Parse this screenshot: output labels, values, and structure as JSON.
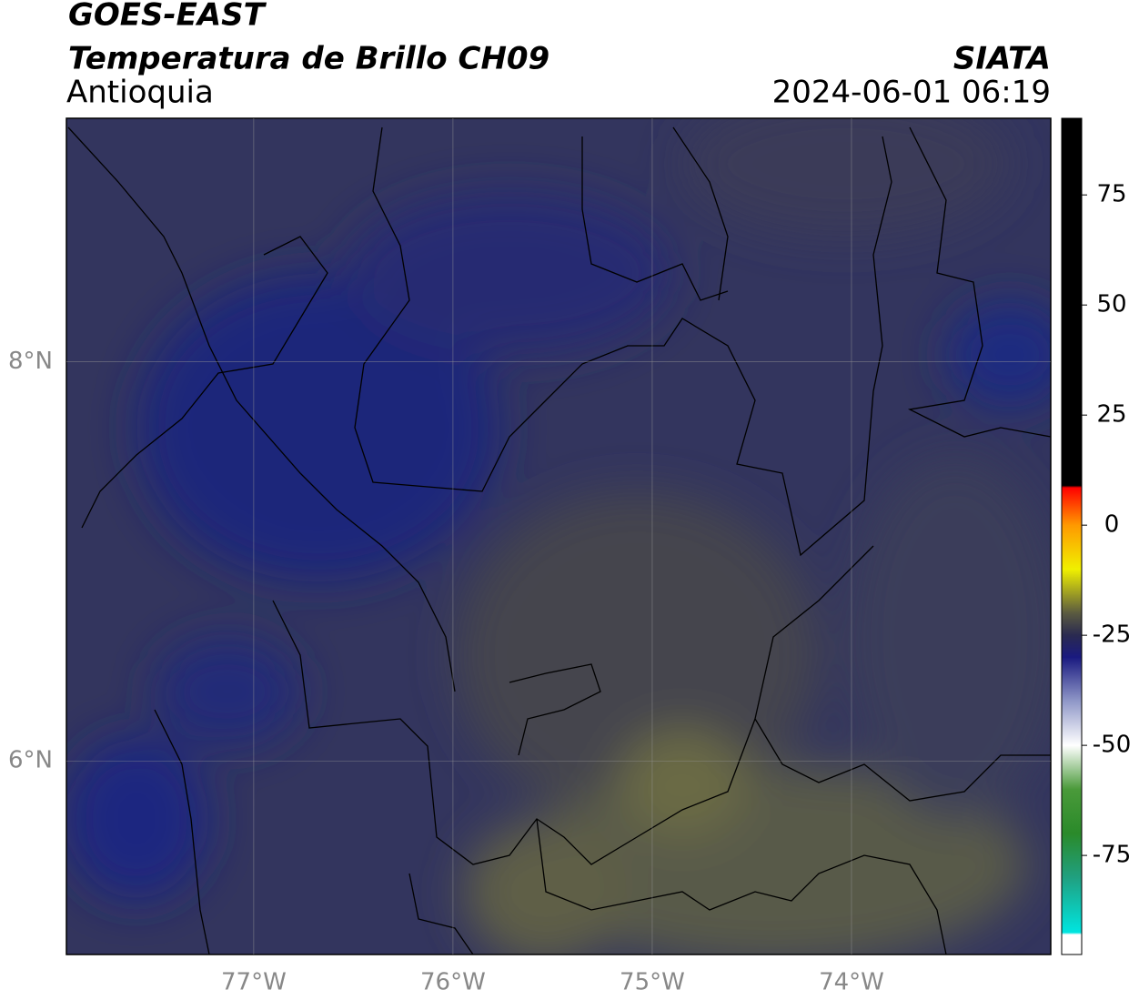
{
  "header": {
    "title": "GOES-EAST",
    "subtitle": "Temperatura de Brillo CH09",
    "region": "Antioquia",
    "source": "SIATA",
    "datetime": "2024-06-01 06:19"
  },
  "map": {
    "xlim": [
      -77.94,
      -73.0
    ],
    "ylim": [
      5.03,
      9.22
    ],
    "xticks": [
      {
        "value": -77,
        "label": "77°W"
      },
      {
        "value": -76,
        "label": "76°W"
      },
      {
        "value": -75,
        "label": "75°W"
      },
      {
        "value": -74,
        "label": "74°W"
      }
    ],
    "yticks": [
      {
        "value": 6,
        "label": "6°N"
      },
      {
        "value": 8,
        "label": "8°N"
      }
    ],
    "grid": true
  },
  "colorbar": {
    "lim": [
      -97.5,
      92.4
    ],
    "ticks": [
      -75,
      -50,
      -25,
      0,
      25,
      50,
      75
    ],
    "stops": [
      {
        "value": -97.5,
        "color": "#ffffff"
      },
      {
        "value": -93,
        "color": "#ffffff"
      },
      {
        "value": -92.5,
        "color": "#00e5e0"
      },
      {
        "value": -80,
        "color": "#20a080"
      },
      {
        "value": -70,
        "color": "#2a8a2a"
      },
      {
        "value": -60,
        "color": "#4a9a3a"
      },
      {
        "value": -50,
        "color": "#ffffff"
      },
      {
        "value": -40,
        "color": "#9098c8"
      },
      {
        "value": -30,
        "color": "#1a1a80"
      },
      {
        "value": -25,
        "color": "#2a2a50"
      },
      {
        "value": -20,
        "color": "#5a5a40"
      },
      {
        "value": -10,
        "color": "#f0f000"
      },
      {
        "value": 0,
        "color": "#ff9900"
      },
      {
        "value": 8.5,
        "color": "#ff0000"
      },
      {
        "value": 9,
        "color": "#000000"
      },
      {
        "value": 92.4,
        "color": "#000000"
      }
    ]
  }
}
